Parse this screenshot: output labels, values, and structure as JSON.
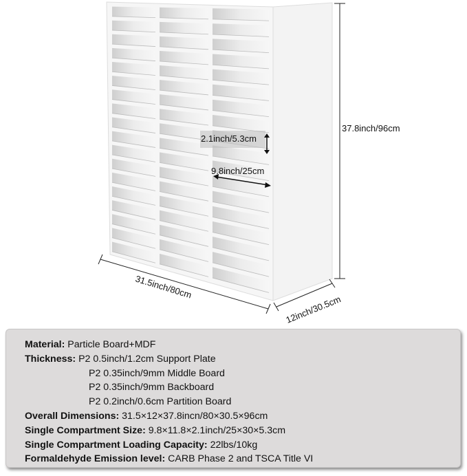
{
  "product": {
    "compartment_rows": 18,
    "compartment_columns": 3,
    "color": "#f4f4f4"
  },
  "dimensions": {
    "height": "37.8inch/96cm",
    "width": "31.5inch/80cm",
    "depth": "12inch/30.5cm",
    "compartment_height": "2.1inch/5.3cm",
    "compartment_width": "9.8inch/25cm"
  },
  "specs": {
    "material_label": "Material:",
    "material_value": "Particle Board+MDF",
    "thickness_label": "Thickness:",
    "thickness_values": [
      "P2 0.5inch/1.2cm Support Plate",
      "P2 0.35inch/9mm Middle Board",
      "P2 0.35inch/9mm Backboard",
      "P2 0.2inch/0.6cm Partition Board"
    ],
    "overall_label": "Overall Dimensions:",
    "overall_value": "31.5×12×37.8incn/80×30.5×96cm",
    "compartment_size_label": "Single Compartment Size:",
    "compartment_size_value": "9.8×11.8×2.1inch/25×30×5.3cm",
    "capacity_label": "Single Compartment Loading Capacity:",
    "capacity_value": "22lbs/10kg",
    "emission_label": "Formaldehyde Emission level:",
    "emission_value": "CARB Phase 2 and TSCA Title VI"
  }
}
